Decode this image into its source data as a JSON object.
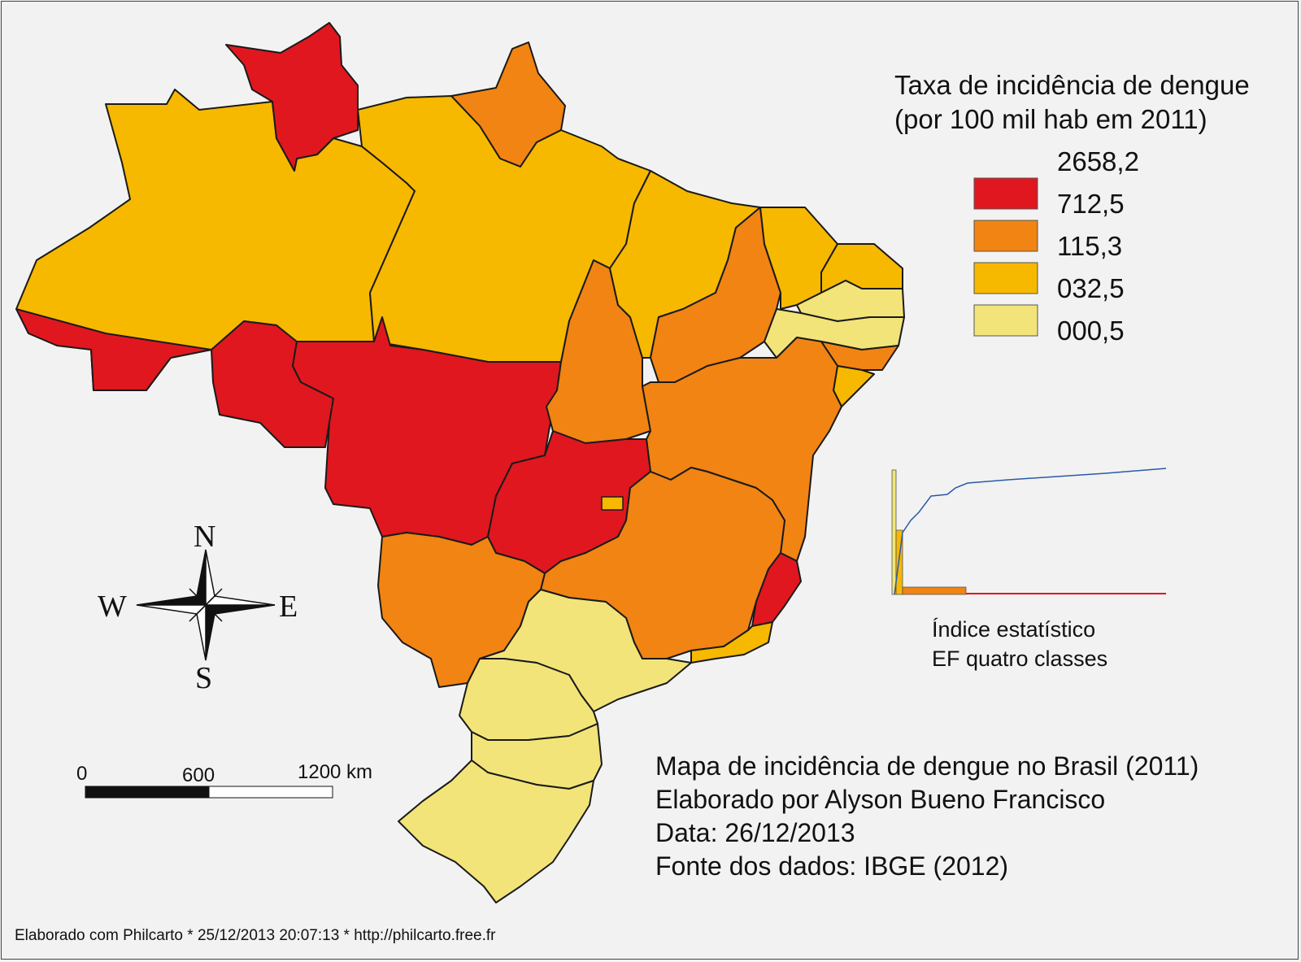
{
  "legend": {
    "title_line1": "Taxa de incidência de dengue",
    "title_line2": "(por 100 mil hab em 2011)",
    "breaks": [
      "2658,2",
      "712,5",
      "115,3",
      "032,5",
      "000,5"
    ],
    "classes": [
      {
        "color": "#e0171f",
        "range": [
          "712,5",
          "2658,2"
        ]
      },
      {
        "color": "#f18413",
        "range": [
          "115,3",
          "712,5"
        ]
      },
      {
        "color": "#f7b800",
        "range": [
          "032,5",
          "115,3"
        ]
      },
      {
        "color": "#f2e479",
        "range": [
          "000,5",
          "032,5"
        ]
      }
    ]
  },
  "stat_chart": {
    "label_line1": "Índice estatístico",
    "label_line2": "EF quatro classes"
  },
  "info": {
    "line1": "Mapa de incidência de dengue no Brasil (2011)",
    "line2": "Elaborado por Alyson Bueno Francisco",
    "line3": "Data: 26/12/2013",
    "line4": "Fonte dos dados: IBGE (2012)"
  },
  "scale_bar": {
    "label_0": "0",
    "label_mid": "600",
    "label_end": "1200 km"
  },
  "compass": {
    "n": "N",
    "s": "S",
    "e": "E",
    "w": "W"
  },
  "footer": "Elaborado com Philcarto * 25/12/2013 20:07:13 * http://philcarto.free.fr",
  "regions": {
    "roraima": "red",
    "amapa": "orange",
    "amazonas": "amber",
    "para": "amber",
    "acre": "red",
    "rondonia": "red",
    "mato_grosso": "red",
    "tocantins": "orange",
    "maranhao": "amber",
    "piaui": "orange",
    "ceara": "amber",
    "rio_grande_do_norte": "amber",
    "paraiba": "pale",
    "pernambuco": "pale",
    "alagoas": "orange",
    "sergipe": "amber",
    "bahia": "orange",
    "goias": "red",
    "distrito_federal": "amber",
    "minas_gerais": "orange",
    "espirito_santo": "red",
    "rio_de_janeiro": "amber",
    "mato_grosso_do_sul": "orange",
    "sao_paulo": "pale",
    "parana": "pale",
    "santa_catarina": "pale",
    "rio_grande_do_sul": "pale"
  }
}
